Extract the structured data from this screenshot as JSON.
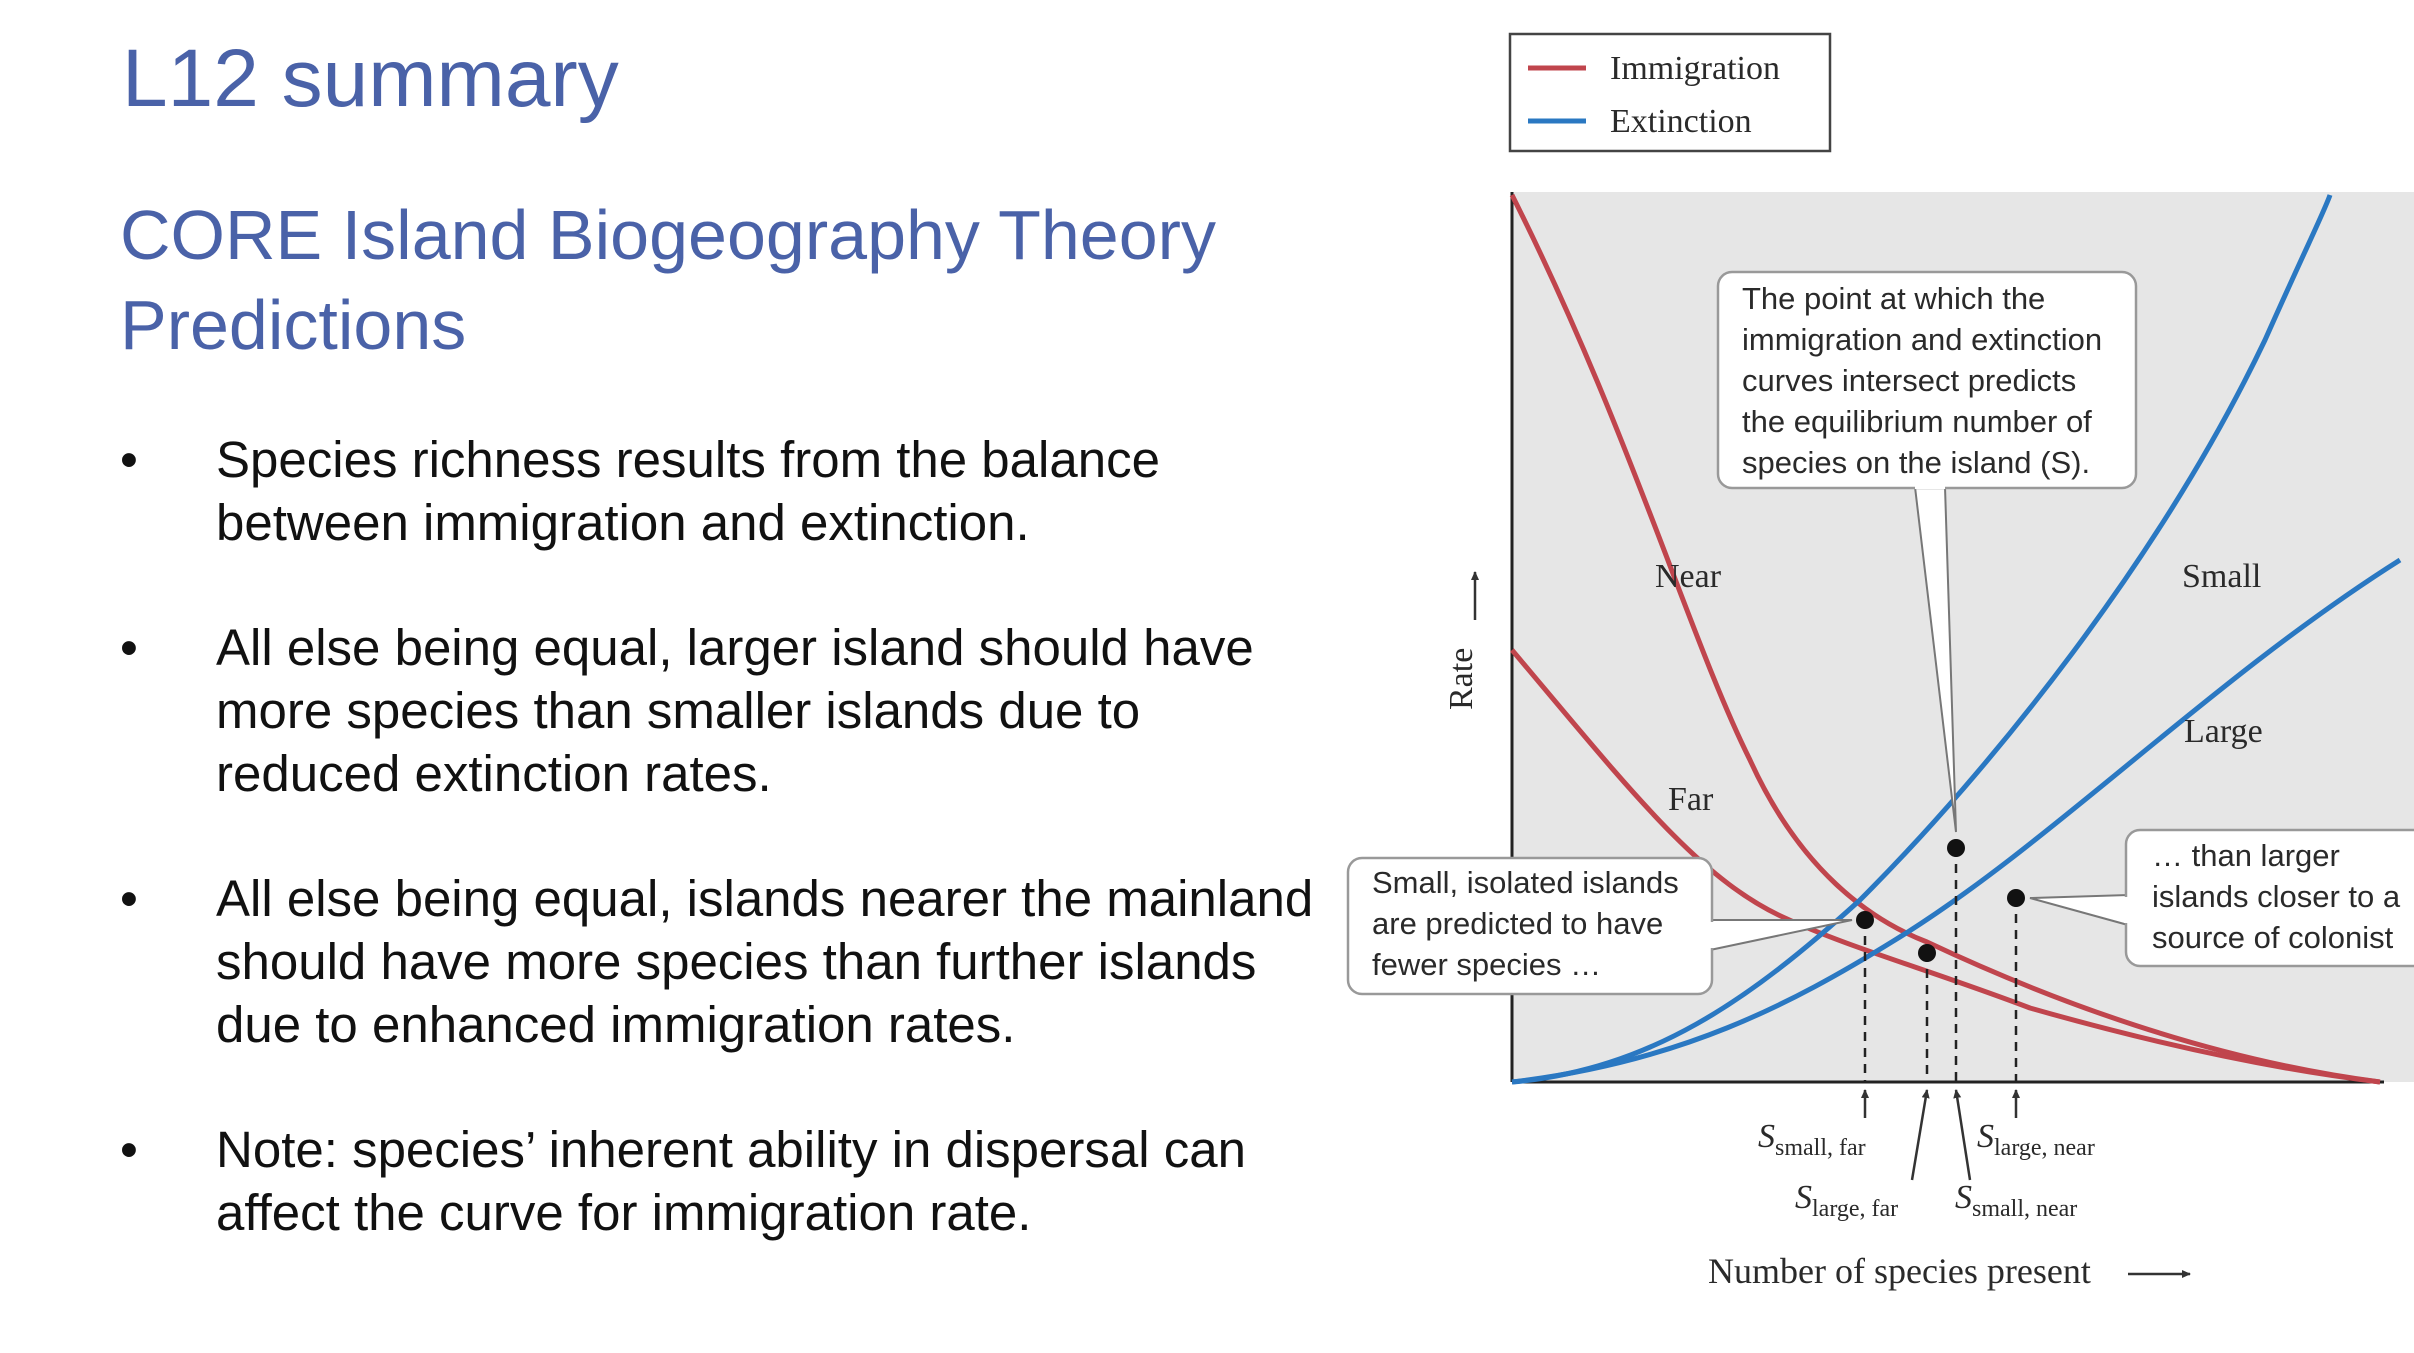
{
  "slide": {
    "title": "L12 summary",
    "subtitle": "CORE Island Biogeography Theory Predictions",
    "bullet_symbol": "•",
    "bullets": [
      "Species richness results from the balance between immigration and extinction.",
      "All else being equal, larger island should have more species than smaller islands due to reduced extinction rates.",
      "All else being equal, islands nearer the mainland should have more species than further islands due to enhanced immigration rates.",
      "Note: species’ inherent ability in dispersal can affect the curve for immigration rate."
    ]
  },
  "figure": {
    "legend": {
      "immigration": "Immigration",
      "extinction": "Extinction"
    },
    "colors": {
      "immigration": "#c0454d",
      "extinction": "#2a78c2",
      "panel": "#e6e6e6"
    },
    "curve_labels": {
      "near": "Near",
      "far": "Far",
      "small": "Small",
      "large": "Large"
    },
    "y_axis_label": "Rate",
    "x_axis_label": "Number of species present",
    "callout_top": [
      "The point at which the",
      "immigration and extinction",
      "curves intersect predicts",
      "the equilibrium number of",
      "species on the island (S)."
    ],
    "callout_left": [
      "Small, isolated islands",
      "are predicted to have",
      "fewer species …"
    ],
    "callout_right": [
      "… than larger",
      "islands closer to a",
      "source of colonist"
    ],
    "equilibria": {
      "small_far": {
        "s": "S",
        "sub": "small, far"
      },
      "large_far": {
        "s": "S",
        "sub": "large, far"
      },
      "small_near": {
        "s": "S",
        "sub": "small, near"
      },
      "large_near": {
        "s": "S",
        "sub": "large, near"
      }
    }
  }
}
